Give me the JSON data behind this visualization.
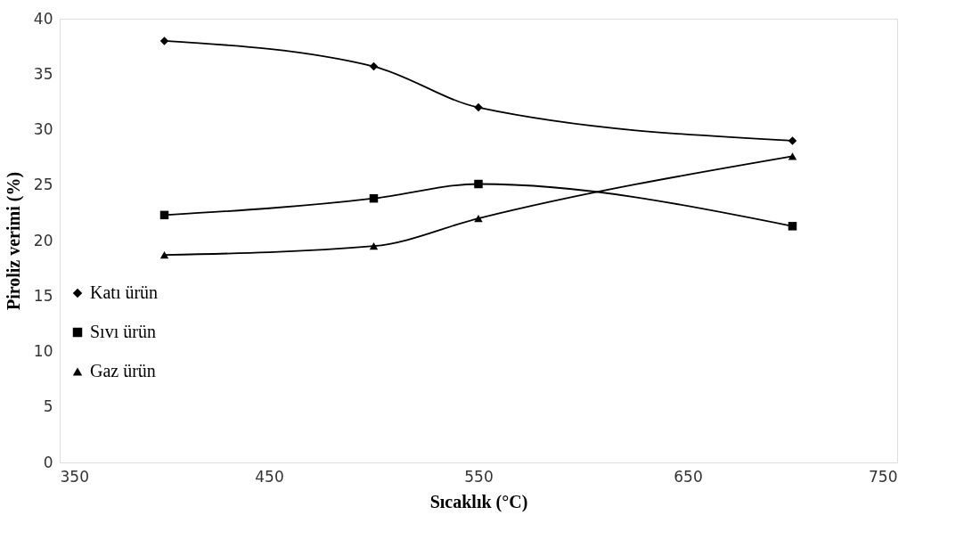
{
  "chart_data": {
    "type": "line",
    "xlabel": "Sıcaklık (°C)",
    "ylabel": "Piroliz verimi (%)",
    "x": [
      400,
      500,
      550,
      700
    ],
    "series": [
      {
        "name": "Katı ürün",
        "color": "#000000",
        "marker": "diamond",
        "values": [
          38.0,
          35.7,
          32.0,
          29.0
        ]
      },
      {
        "name": "Sıvı ürün",
        "color": "#000000",
        "marker": "square",
        "values": [
          22.3,
          23.8,
          25.1,
          21.3
        ]
      },
      {
        "name": "Gaz ürün",
        "color": "#000000",
        "marker": "triangle",
        "values": [
          18.7,
          19.5,
          22.0,
          27.6
        ]
      }
    ],
    "xlim": [
      350,
      750
    ],
    "xticks": [
      350,
      450,
      550,
      650,
      750
    ],
    "ylim": [
      0,
      40
    ],
    "yticks": [
      0,
      5,
      10,
      15,
      20,
      25,
      30,
      35,
      40
    ],
    "grid": false,
    "legend": "bottom left",
    "line_style": "solid"
  }
}
